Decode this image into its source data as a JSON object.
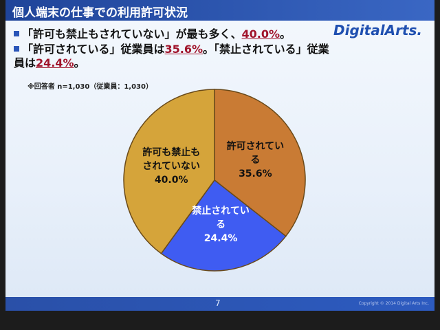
{
  "slide": {
    "title": "個人端末の仕事での利用許可状況",
    "logo": "DigitalArts.",
    "bullets": [
      [
        "「許可も禁止もされていない」が最も多く、",
        "40.0%",
        "。"
      ],
      [
        "「許可されている」従業員は",
        "35.6%",
        "。「禁止されている」従業員は",
        "24.4%",
        "。"
      ]
    ],
    "note": "※回答者 n=1,030（従業員：1,030）",
    "page_number": "7",
    "copyright": "Copyright © 2014 Digital Arts Inc."
  },
  "chart_data": {
    "type": "pie",
    "categories": [
      "許可されている",
      "禁止されている",
      "許可も禁止もされていない"
    ],
    "values": [
      35.6,
      24.4,
      40.0
    ],
    "value_labels": [
      "35.6%",
      "24.4%",
      "40.0%"
    ],
    "colors": [
      "#c97b34",
      "#3f5cf2",
      "#d5a43a"
    ],
    "label_colors": [
      "#111111",
      "#ffffff",
      "#111111"
    ]
  }
}
